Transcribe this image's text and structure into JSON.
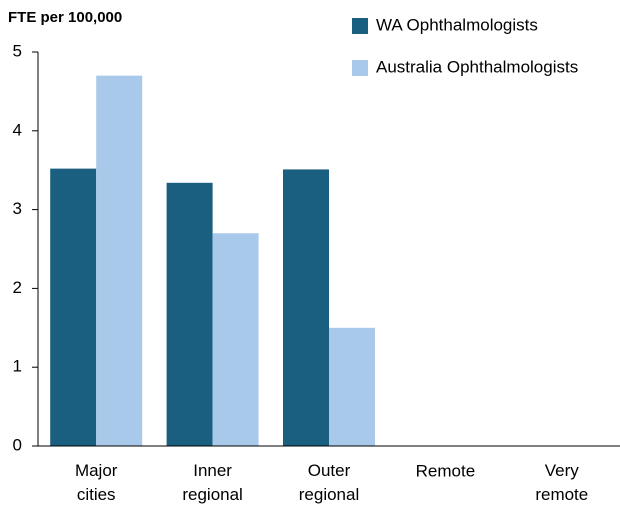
{
  "chart_data": {
    "type": "bar",
    "y_label": "FTE per 100,000",
    "categories": [
      "Major cities",
      "Inner regional",
      "Outer regional",
      "Remote",
      "Very remote"
    ],
    "series": [
      {
        "name": "WA Ophthalmologists",
        "color": "#1a5f80",
        "values": [
          3.52,
          3.34,
          3.51,
          0,
          0
        ]
      },
      {
        "name": "Australia Ophthalmologists",
        "color": "#a9c9ea",
        "values": [
          4.7,
          2.7,
          1.5,
          0,
          0
        ]
      }
    ],
    "ylim": [
      0,
      5
    ],
    "yticks": [
      0,
      1,
      2,
      3,
      4,
      5
    ],
    "grid": false,
    "legend": "top-right"
  }
}
